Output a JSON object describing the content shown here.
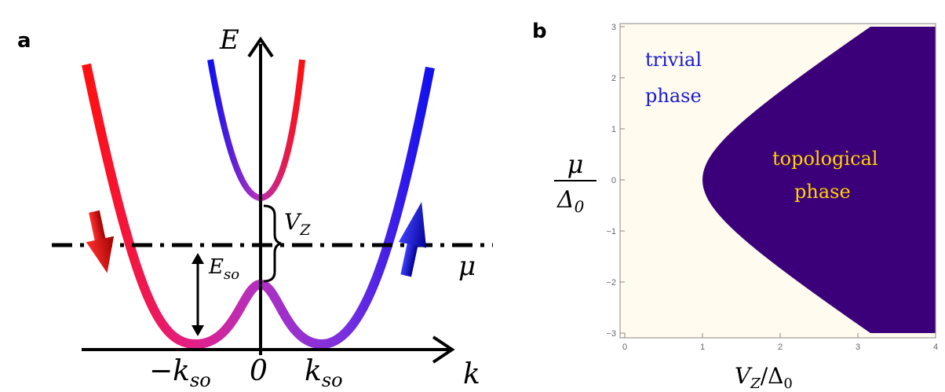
{
  "panel_a": {
    "label": "a",
    "axis_e": "E",
    "axis_k": "k",
    "tick_neg": "−k",
    "tick_neg_sub": "so",
    "tick_zero": "0",
    "tick_pos": "k",
    "tick_pos_sub": "so",
    "vz_main": "V",
    "vz_sub": "Z",
    "eso_main": "E",
    "eso_sub": "so",
    "mu": "μ",
    "colors": {
      "spin_down": "#ff1010",
      "spin_up": "#1010ee",
      "gap": "#b030c0"
    }
  },
  "panel_b": {
    "label": "b",
    "trivial_line1": "trivial",
    "trivial_line2": "phase",
    "topo_line1": "topological",
    "topo_line2": "phase",
    "ylabel_num": "μ",
    "ylabel_den": "Δ",
    "ylabel_den_sub": "0",
    "xlabel_main": "V",
    "xlabel_sub": "Z",
    "xlabel_den": "/Δ",
    "xlabel_den_sub": "0",
    "x_ticks": [
      "0",
      "1",
      "2",
      "3",
      "4"
    ],
    "y_ticks": [
      "3",
      "2",
      "1",
      "0",
      "−1",
      "−2",
      "−3"
    ],
    "colors": {
      "trivial": "#fffbee",
      "topological": "#3b0079"
    }
  },
  "chart_data": {
    "type": "heatmap",
    "xlabel": "V_Z/Δ_0",
    "ylabel": "μ/Δ_0",
    "xlim": [
      0,
      4
    ],
    "ylim": [
      -3,
      3
    ],
    "boundary": "V_Z = sqrt(μ^2 + 1)",
    "regions": [
      "trivial phase",
      "topological phase"
    ]
  }
}
